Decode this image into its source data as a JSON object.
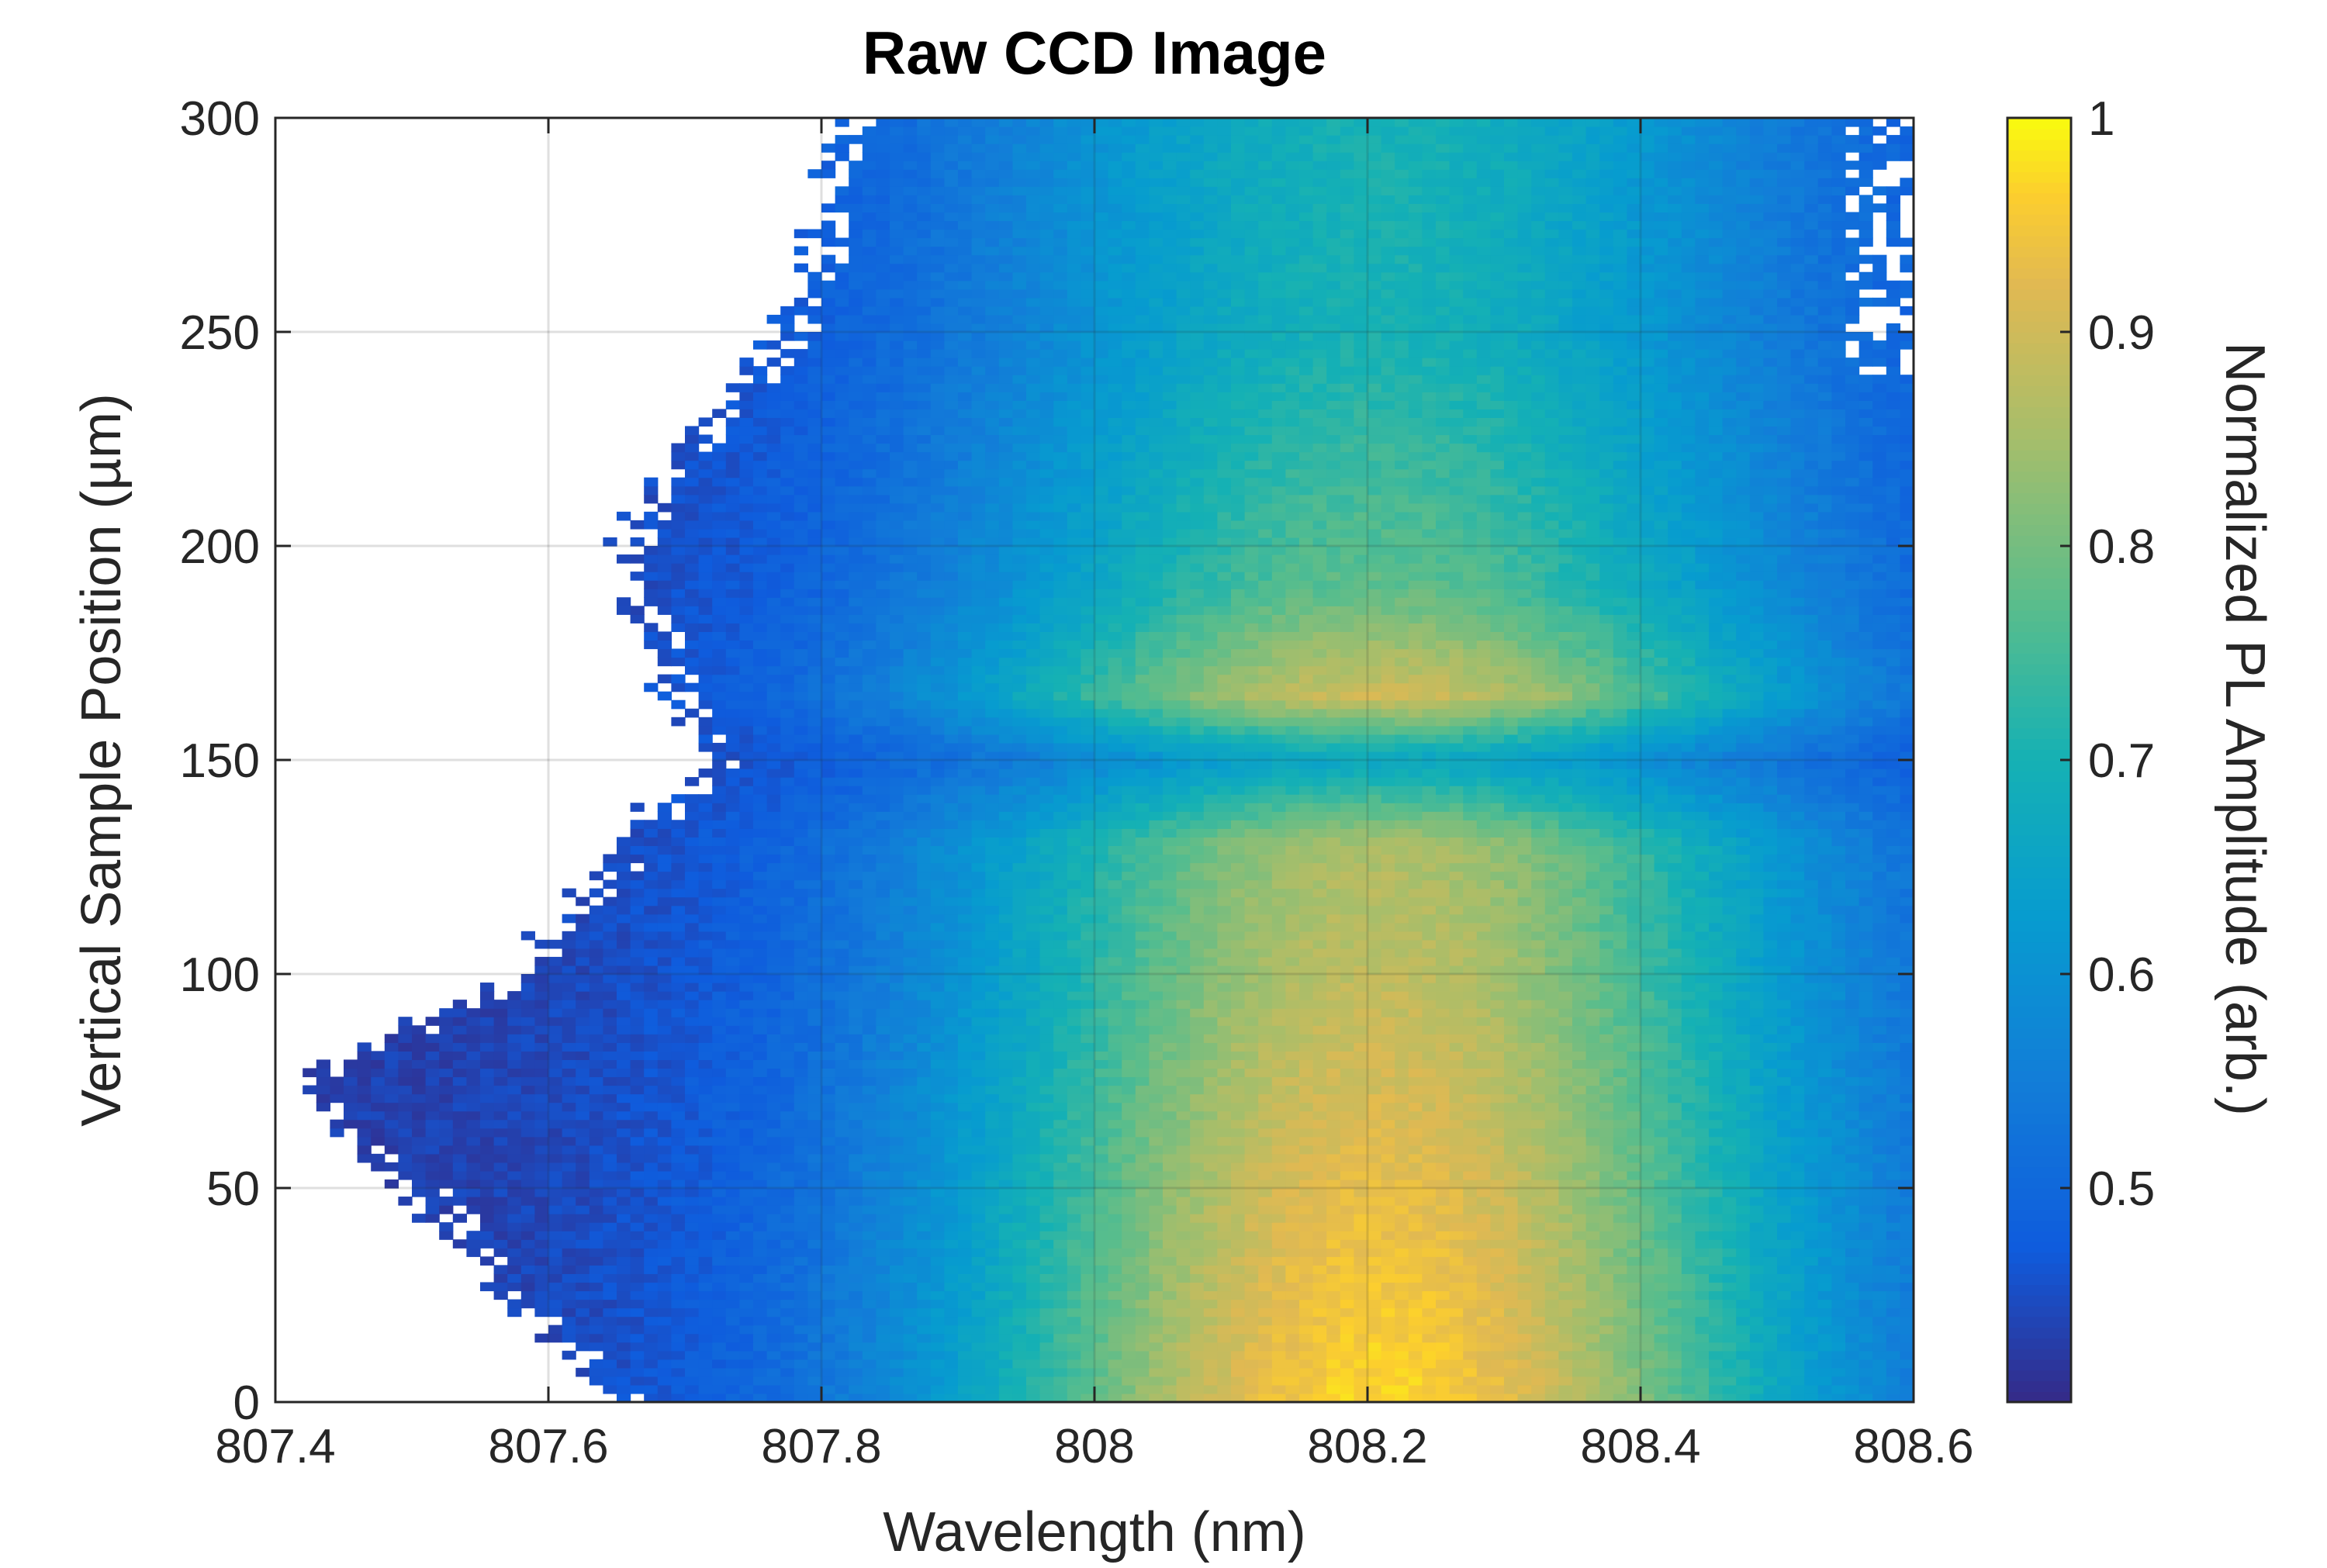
{
  "chart_data": {
    "type": "heatmap",
    "title": "Raw CCD Image",
    "xlabel": "Wavelength (nm)",
    "ylabel": "Vertical Sample Position (µm)",
    "colorbar_label": "Normalized PL Amplitude (arb.)",
    "xlim": [
      807.4,
      808.6
    ],
    "ylim": [
      0,
      300
    ],
    "clim": [
      0.4,
      1.0
    ],
    "x_ticks": [
      807.4,
      807.6,
      807.8,
      808,
      808.2,
      808.4,
      808.6
    ],
    "x_tick_labels": [
      "807.4",
      "807.6",
      "807.8",
      "808",
      "808.2",
      "808.4",
      "808.6"
    ],
    "y_ticks": [
      0,
      50,
      100,
      150,
      200,
      250,
      300
    ],
    "y_tick_labels": [
      "0",
      "50",
      "100",
      "150",
      "200",
      "250",
      "300"
    ],
    "colorbar_ticks": [
      0.5,
      0.6,
      0.7,
      0.8,
      0.9,
      1.0
    ],
    "colorbar_tick_labels": [
      "0.5",
      "0.6",
      "0.7",
      "0.8",
      "0.9",
      "1"
    ],
    "colormap": "parula",
    "grid": true,
    "peak_wavelength_nm": 808.21,
    "peak_amplitude_by_position": [
      {
        "y": 0,
        "value": 0.97
      },
      {
        "y": 50,
        "value": 0.93
      },
      {
        "y": 100,
        "value": 0.88
      },
      {
        "y": 130,
        "value": 0.86
      },
      {
        "y": 150,
        "value": 0.66
      },
      {
        "y": 165,
        "value": 0.9
      },
      {
        "y": 190,
        "value": 0.78
      },
      {
        "y": 220,
        "value": 0.74
      },
      {
        "y": 250,
        "value": 0.7
      },
      {
        "y": 300,
        "value": 0.7
      }
    ],
    "lower_cutoff_wavelength_by_position": [
      {
        "y": 0,
        "x": 807.66
      },
      {
        "y": 50,
        "x": 807.5
      },
      {
        "y": 75,
        "x": 807.42
      },
      {
        "y": 100,
        "x": 807.58
      },
      {
        "y": 150,
        "x": 807.72
      },
      {
        "y": 200,
        "x": 807.65
      },
      {
        "y": 250,
        "x": 807.78
      },
      {
        "y": 300,
        "x": 807.82
      }
    ]
  }
}
